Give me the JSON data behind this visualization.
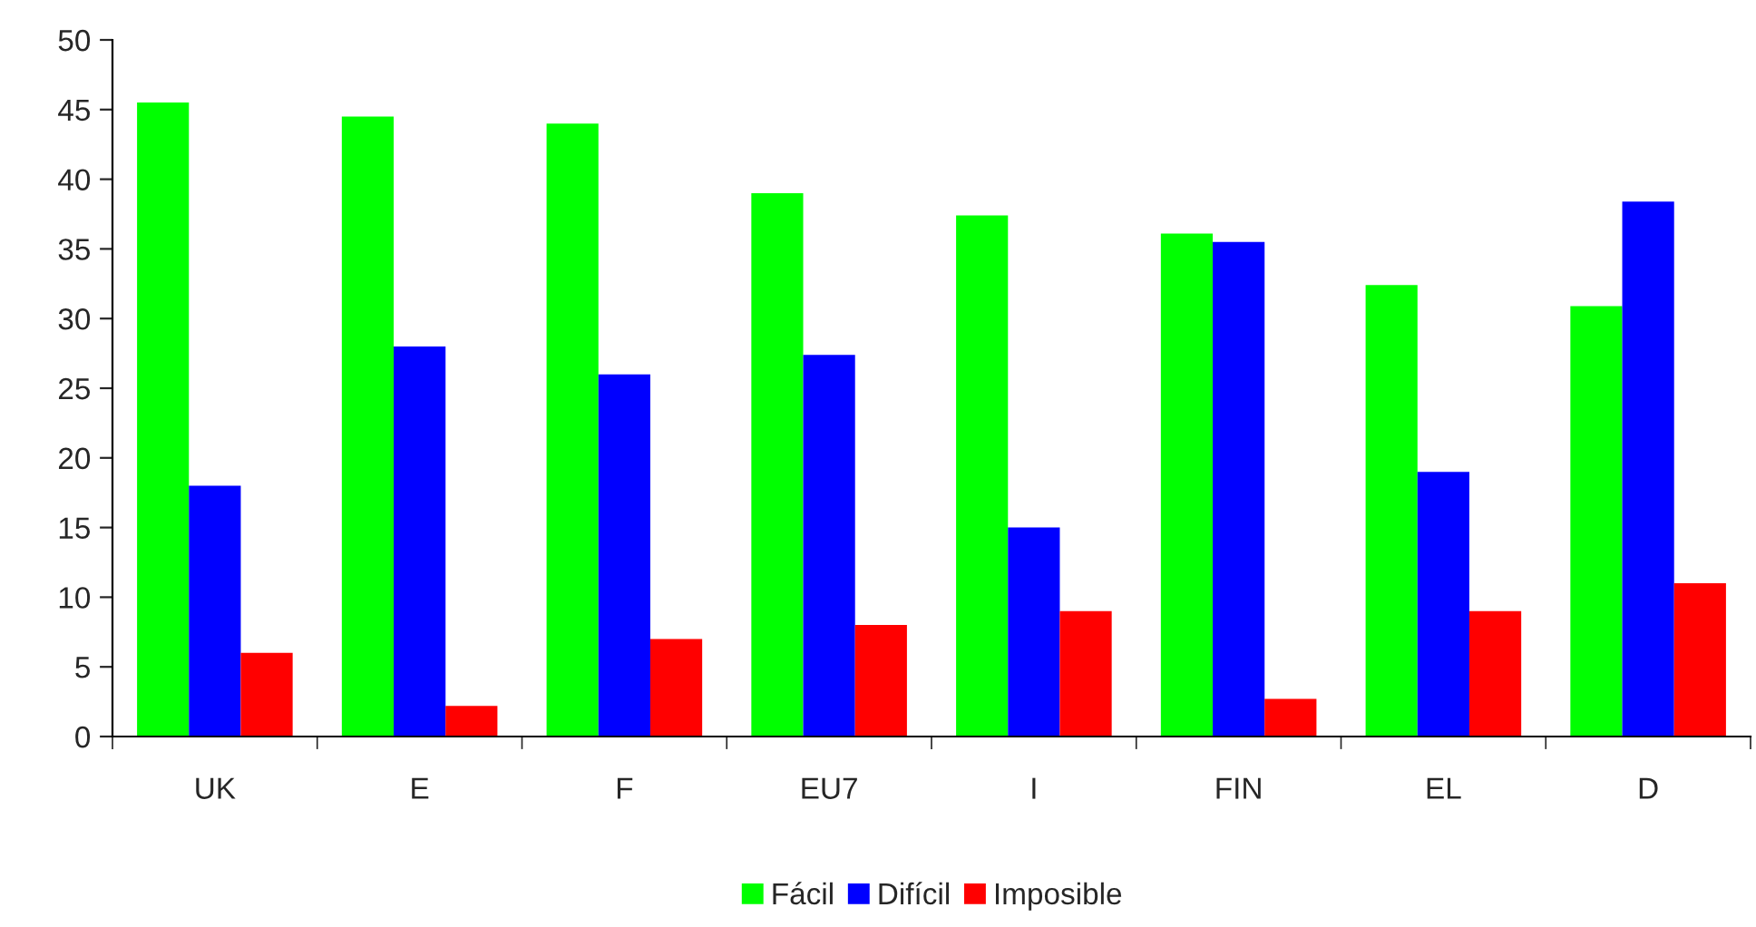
{
  "chart_data": {
    "type": "bar",
    "categories": [
      "UK",
      "E",
      "F",
      "EU7",
      "I",
      "FIN",
      "EL",
      "D"
    ],
    "series": [
      {
        "name": "Fácil",
        "color": "#00ff00",
        "values": [
          45.5,
          44.5,
          44,
          39,
          37.4,
          36.1,
          32.4,
          30.9
        ]
      },
      {
        "name": "Difícil",
        "color": "#0000ff",
        "values": [
          18,
          28,
          26,
          27.4,
          15,
          35.5,
          19,
          38.4
        ]
      },
      {
        "name": "Imposible",
        "color": "#ff0000",
        "values": [
          6,
          2.2,
          7,
          8,
          9,
          2.7,
          9,
          11
        ]
      }
    ],
    "ylim": [
      0,
      50
    ],
    "yticks": [
      0,
      5,
      10,
      15,
      20,
      25,
      30,
      35,
      40,
      45,
      50
    ],
    "grid": false,
    "legend": "bottom"
  }
}
